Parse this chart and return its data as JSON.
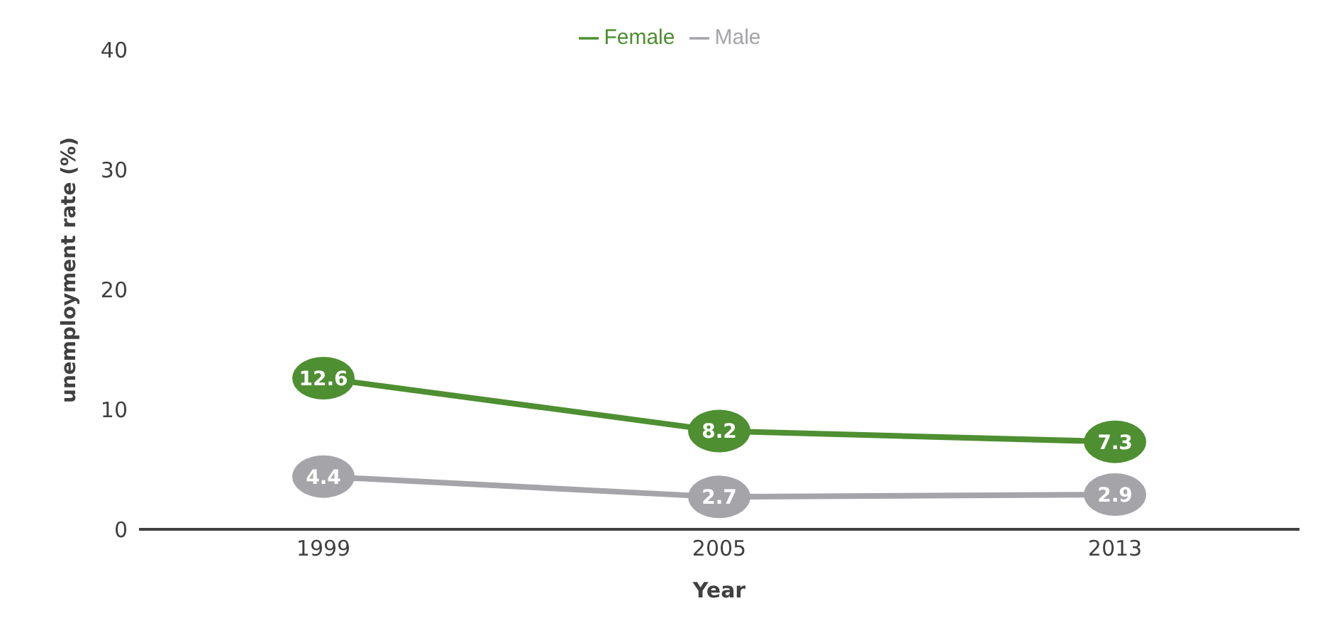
{
  "chart_data": {
    "type": "line",
    "categories": [
      "1999",
      "2005",
      "2013"
    ],
    "series": [
      {
        "name": "Female",
        "color": "#4e8f32",
        "values": [
          12.6,
          8.2,
          7.3
        ]
      },
      {
        "name": "Male",
        "color": "#a5a5a9",
        "values": [
          4.4,
          2.7,
          2.9
        ]
      }
    ],
    "xlabel": "Year",
    "ylabel": "unemployment rate (%)",
    "ylim": [
      0,
      40
    ],
    "yticks": [
      0,
      10,
      20,
      30,
      40
    ],
    "data_labels": true,
    "legend": "top",
    "marker": "circle",
    "grid": false
  }
}
